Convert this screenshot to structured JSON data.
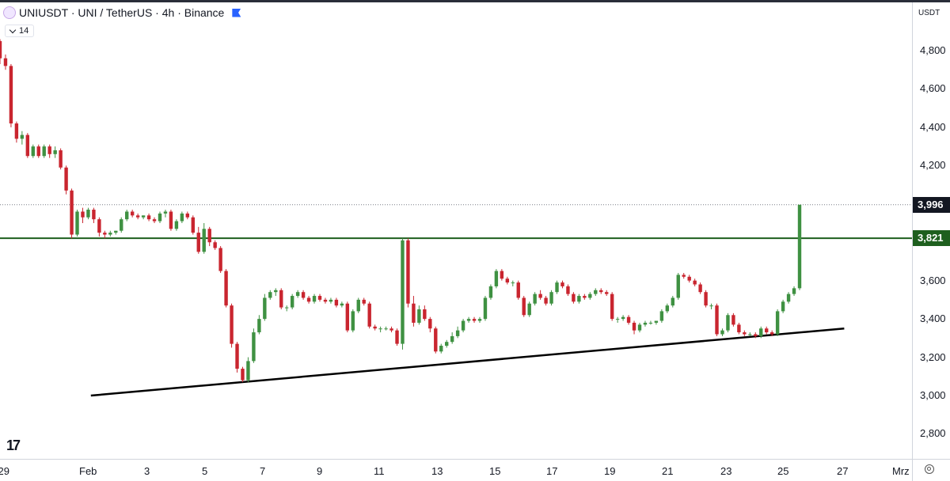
{
  "header": {
    "symbol_line": "UNIUSDT · UNI / TetherUS · 4h · Binance",
    "indicator_value": "14"
  },
  "price_axis": {
    "currency": "USDT",
    "ticks": [
      "4,800",
      "4,600",
      "4,400",
      "4,200",
      "4,000",
      "3,600",
      "3,400",
      "3,200",
      "3,000",
      "2,800"
    ],
    "tick_values": [
      4.8,
      4.6,
      4.4,
      4.2,
      4.0,
      3.6,
      3.4,
      3.2,
      3.0,
      2.8
    ],
    "current_price_label": "3,996",
    "level_price_label": "3,821"
  },
  "time_axis": {
    "ticks": [
      "29",
      "Feb",
      "3",
      "5",
      "7",
      "9",
      "11",
      "13",
      "15",
      "17",
      "19",
      "21",
      "23",
      "25",
      "27",
      "Mrz"
    ]
  },
  "colors": {
    "up": "#3f9142",
    "down": "#c9252f",
    "level_line": "#1e5f1e",
    "trend_line": "#000000",
    "current_price_tag": "#131722",
    "level_price_tag": "#1e5f1e"
  },
  "chart_data": {
    "type": "candlestick",
    "interval": "4h",
    "y_range": [
      2.72,
      4.98
    ],
    "x_range_days": [
      "2025-01-29",
      "2025-03-01"
    ],
    "levels": [
      {
        "kind": "horizontal",
        "value": 3.821
      },
      {
        "kind": "dotted-current",
        "value": 3.996
      }
    ],
    "trendline": [
      [
        "2025-02-01",
        3.0
      ],
      [
        "2025-02-27",
        3.35
      ]
    ],
    "candles_ohlc": [
      [
        4.85,
        4.86,
        4.73,
        4.76
      ],
      [
        4.76,
        4.78,
        4.7,
        4.72
      ],
      [
        4.72,
        4.73,
        4.4,
        4.42
      ],
      [
        4.42,
        4.43,
        4.32,
        4.34
      ],
      [
        4.34,
        4.38,
        4.31,
        4.36
      ],
      [
        4.36,
        4.37,
        4.24,
        4.25
      ],
      [
        4.25,
        4.31,
        4.24,
        4.3
      ],
      [
        4.3,
        4.31,
        4.24,
        4.25
      ],
      [
        4.25,
        4.31,
        4.24,
        4.3
      ],
      [
        4.3,
        4.31,
        4.24,
        4.26
      ],
      [
        4.26,
        4.3,
        4.24,
        4.28
      ],
      [
        4.28,
        4.29,
        4.18,
        4.19
      ],
      [
        4.19,
        4.2,
        4.05,
        4.07
      ],
      [
        4.07,
        4.08,
        3.82,
        3.84
      ],
      [
        3.84,
        3.97,
        3.83,
        3.96
      ],
      [
        3.96,
        3.98,
        3.9,
        3.93
      ],
      [
        3.93,
        3.98,
        3.92,
        3.97
      ],
      [
        3.97,
        3.98,
        3.9,
        3.92
      ],
      [
        3.92,
        3.93,
        3.83,
        3.85
      ],
      [
        3.85,
        3.86,
        3.82,
        3.84
      ],
      [
        3.84,
        3.86,
        3.83,
        3.85
      ],
      [
        3.85,
        3.86,
        3.84,
        3.86
      ],
      [
        3.86,
        3.93,
        3.85,
        3.92
      ],
      [
        3.92,
        3.97,
        3.91,
        3.96
      ],
      [
        3.96,
        3.97,
        3.93,
        3.94
      ],
      [
        3.94,
        3.95,
        3.92,
        3.93
      ],
      [
        3.93,
        3.94,
        3.92,
        3.94
      ],
      [
        3.94,
        3.95,
        3.91,
        3.92
      ],
      [
        3.92,
        3.93,
        3.9,
        3.91
      ],
      [
        3.91,
        3.96,
        3.9,
        3.95
      ],
      [
        3.95,
        3.97,
        3.93,
        3.96
      ],
      [
        3.96,
        3.97,
        3.86,
        3.87
      ],
      [
        3.87,
        3.92,
        3.86,
        3.91
      ],
      [
        3.91,
        3.96,
        3.9,
        3.95
      ],
      [
        3.95,
        3.96,
        3.92,
        3.93
      ],
      [
        3.93,
        3.94,
        3.84,
        3.85
      ],
      [
        3.85,
        3.88,
        3.74,
        3.75
      ],
      [
        3.75,
        3.9,
        3.74,
        3.87
      ],
      [
        3.87,
        3.88,
        3.78,
        3.8
      ],
      [
        3.8,
        3.81,
        3.76,
        3.77
      ],
      [
        3.77,
        3.78,
        3.64,
        3.65
      ],
      [
        3.65,
        3.66,
        3.46,
        3.47
      ],
      [
        3.47,
        3.48,
        3.25,
        3.27
      ],
      [
        3.27,
        3.28,
        3.12,
        3.14
      ],
      [
        3.14,
        3.15,
        3.07,
        3.08
      ],
      [
        3.08,
        3.2,
        3.07,
        3.18
      ],
      [
        3.18,
        3.35,
        3.17,
        3.33
      ],
      [
        3.33,
        3.42,
        3.32,
        3.4
      ],
      [
        3.4,
        3.53,
        3.39,
        3.51
      ],
      [
        3.51,
        3.55,
        3.5,
        3.54
      ],
      [
        3.54,
        3.56,
        3.52,
        3.55
      ],
      [
        3.55,
        3.56,
        3.45,
        3.46
      ],
      [
        3.46,
        3.47,
        3.44,
        3.46
      ],
      [
        3.46,
        3.53,
        3.45,
        3.52
      ],
      [
        3.52,
        3.55,
        3.51,
        3.54
      ],
      [
        3.54,
        3.55,
        3.5,
        3.51
      ],
      [
        3.51,
        3.52,
        3.48,
        3.49
      ],
      [
        3.49,
        3.53,
        3.48,
        3.52
      ],
      [
        3.52,
        3.53,
        3.49,
        3.5
      ],
      [
        3.5,
        3.51,
        3.48,
        3.49
      ],
      [
        3.49,
        3.51,
        3.48,
        3.5
      ],
      [
        3.5,
        3.51,
        3.46,
        3.47
      ],
      [
        3.47,
        3.49,
        3.46,
        3.48
      ],
      [
        3.48,
        3.49,
        3.33,
        3.34
      ],
      [
        3.34,
        3.45,
        3.33,
        3.44
      ],
      [
        3.44,
        3.51,
        3.43,
        3.5
      ],
      [
        3.5,
        3.51,
        3.47,
        3.48
      ],
      [
        3.48,
        3.49,
        3.35,
        3.36
      ],
      [
        3.36,
        3.37,
        3.34,
        3.35
      ],
      [
        3.35,
        3.36,
        3.33,
        3.35
      ],
      [
        3.35,
        3.36,
        3.34,
        3.35
      ],
      [
        3.35,
        3.36,
        3.33,
        3.34
      ],
      [
        3.34,
        3.35,
        3.26,
        3.27
      ],
      [
        3.27,
        3.82,
        3.24,
        3.81
      ],
      [
        3.81,
        3.82,
        3.46,
        3.48
      ],
      [
        3.48,
        3.52,
        3.36,
        3.38
      ],
      [
        3.38,
        3.47,
        3.37,
        3.45
      ],
      [
        3.45,
        3.47,
        3.39,
        3.4
      ],
      [
        3.4,
        3.41,
        3.33,
        3.35
      ],
      [
        3.35,
        3.36,
        3.22,
        3.23
      ],
      [
        3.23,
        3.27,
        3.22,
        3.26
      ],
      [
        3.26,
        3.29,
        3.25,
        3.28
      ],
      [
        3.28,
        3.33,
        3.27,
        3.31
      ],
      [
        3.31,
        3.36,
        3.3,
        3.34
      ],
      [
        3.34,
        3.4,
        3.33,
        3.39
      ],
      [
        3.39,
        3.41,
        3.38,
        3.4
      ],
      [
        3.4,
        3.41,
        3.38,
        3.39
      ],
      [
        3.39,
        3.41,
        3.38,
        3.4
      ],
      [
        3.4,
        3.52,
        3.39,
        3.51
      ],
      [
        3.51,
        3.58,
        3.5,
        3.57
      ],
      [
        3.57,
        3.66,
        3.56,
        3.65
      ],
      [
        3.65,
        3.66,
        3.6,
        3.61
      ],
      [
        3.61,
        3.62,
        3.58,
        3.59
      ],
      [
        3.59,
        3.6,
        3.57,
        3.59
      ],
      [
        3.59,
        3.6,
        3.5,
        3.51
      ],
      [
        3.51,
        3.52,
        3.41,
        3.42
      ],
      [
        3.42,
        3.49,
        3.41,
        3.48
      ],
      [
        3.48,
        3.54,
        3.47,
        3.53
      ],
      [
        3.53,
        3.55,
        3.5,
        3.51
      ],
      [
        3.51,
        3.52,
        3.47,
        3.48
      ],
      [
        3.48,
        3.55,
        3.47,
        3.54
      ],
      [
        3.54,
        3.6,
        3.53,
        3.59
      ],
      [
        3.59,
        3.6,
        3.56,
        3.57
      ],
      [
        3.57,
        3.58,
        3.52,
        3.53
      ],
      [
        3.53,
        3.54,
        3.48,
        3.49
      ],
      [
        3.49,
        3.53,
        3.48,
        3.52
      ],
      [
        3.52,
        3.53,
        3.5,
        3.51
      ],
      [
        3.51,
        3.54,
        3.5,
        3.53
      ],
      [
        3.53,
        3.56,
        3.52,
        3.55
      ],
      [
        3.55,
        3.56,
        3.53,
        3.54
      ],
      [
        3.54,
        3.55,
        3.52,
        3.53
      ],
      [
        3.53,
        3.54,
        3.39,
        3.4
      ],
      [
        3.4,
        3.41,
        3.38,
        3.4
      ],
      [
        3.4,
        3.42,
        3.39,
        3.41
      ],
      [
        3.41,
        3.42,
        3.37,
        3.38
      ],
      [
        3.38,
        3.39,
        3.32,
        3.34
      ],
      [
        3.34,
        3.38,
        3.33,
        3.37
      ],
      [
        3.37,
        3.39,
        3.36,
        3.38
      ],
      [
        3.38,
        3.39,
        3.37,
        3.38
      ],
      [
        3.38,
        3.39,
        3.37,
        3.39
      ],
      [
        3.39,
        3.45,
        3.38,
        3.44
      ],
      [
        3.44,
        3.48,
        3.43,
        3.47
      ],
      [
        3.47,
        3.52,
        3.46,
        3.51
      ],
      [
        3.51,
        3.64,
        3.5,
        3.63
      ],
      [
        3.63,
        3.64,
        3.61,
        3.62
      ],
      [
        3.62,
        3.63,
        3.59,
        3.6
      ],
      [
        3.6,
        3.61,
        3.57,
        3.58
      ],
      [
        3.58,
        3.59,
        3.53,
        3.54
      ],
      [
        3.54,
        3.55,
        3.46,
        3.47
      ],
      [
        3.47,
        3.48,
        3.45,
        3.47
      ],
      [
        3.47,
        3.48,
        3.31,
        3.32
      ],
      [
        3.32,
        3.35,
        3.31,
        3.34
      ],
      [
        3.34,
        3.43,
        3.33,
        3.42
      ],
      [
        3.42,
        3.43,
        3.36,
        3.37
      ],
      [
        3.37,
        3.38,
        3.32,
        3.33
      ],
      [
        3.33,
        3.34,
        3.31,
        3.32
      ],
      [
        3.32,
        3.33,
        3.31,
        3.32
      ],
      [
        3.32,
        3.33,
        3.3,
        3.31
      ],
      [
        3.31,
        3.36,
        3.3,
        3.35
      ],
      [
        3.35,
        3.36,
        3.32,
        3.33
      ],
      [
        3.33,
        3.34,
        3.31,
        3.32
      ],
      [
        3.32,
        3.45,
        3.31,
        3.44
      ],
      [
        3.44,
        3.5,
        3.43,
        3.49
      ],
      [
        3.49,
        3.54,
        3.48,
        3.53
      ],
      [
        3.53,
        3.57,
        3.52,
        3.56
      ],
      [
        3.56,
        3.99,
        3.55,
        3.996
      ]
    ]
  }
}
